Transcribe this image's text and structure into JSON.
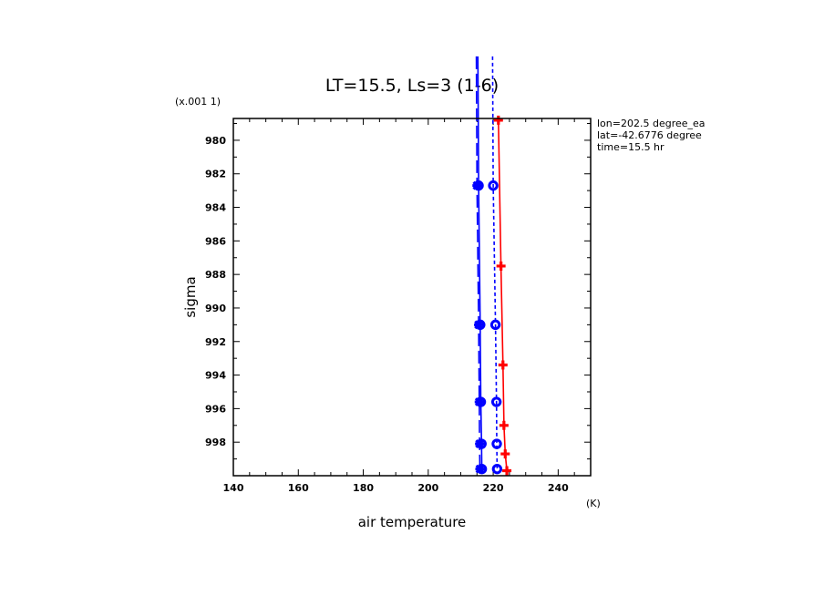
{
  "chart_data": {
    "type": "line",
    "title": "LT=15.5, Ls=3 (1-6)",
    "xlabel": "air temperature",
    "ylabel": "sigma",
    "x_unit": "(K)",
    "y_unit": "(x.001 1)",
    "xlim": [
      140,
      250
    ],
    "ylim": [
      1000,
      978.7
    ],
    "x_ticks": [
      "140",
      "160",
      "180",
      "200",
      "220",
      "240"
    ],
    "y_ticks": [
      "980",
      "982",
      "984",
      "986",
      "988",
      "990",
      "992",
      "994",
      "996",
      "998"
    ],
    "info": [
      "lon=202.5 degree_ea",
      "lat=-42.6776 degree",
      "time=15.5 hr"
    ],
    "series": [
      {
        "color": "#0000ff",
        "dash": "long",
        "marker": "star",
        "points": [
          [
            214.8,
            975.0
          ],
          [
            215.0,
            982.7
          ],
          [
            215.5,
            991.0
          ],
          [
            215.7,
            995.6
          ],
          [
            215.8,
            998.1
          ],
          [
            215.9,
            999.6
          ]
        ]
      },
      {
        "color": "#0000ff",
        "dash": "solid",
        "marker": "circle",
        "points": [
          [
            215.3,
            975.0
          ],
          [
            215.5,
            982.7
          ],
          [
            216.0,
            991.0
          ],
          [
            216.2,
            995.6
          ],
          [
            216.4,
            998.1
          ],
          [
            216.5,
            999.6
          ]
        ]
      },
      {
        "color": "#0000ff",
        "dash": "short",
        "marker": "circle",
        "points": [
          [
            219.8,
            975.0
          ],
          [
            220.0,
            982.7
          ],
          [
            220.7,
            991.0
          ],
          [
            221.0,
            995.6
          ],
          [
            221.1,
            998.1
          ],
          [
            221.2,
            999.6
          ]
        ]
      },
      {
        "color": "#ff0000",
        "dash": "solid",
        "marker": "plus",
        "points": [
          [
            221.6,
            978.8
          ],
          [
            222.4,
            987.5
          ],
          [
            223.0,
            993.4
          ],
          [
            223.3,
            997.0
          ],
          [
            223.7,
            998.7
          ],
          [
            224.2,
            999.7
          ]
        ]
      }
    ]
  }
}
